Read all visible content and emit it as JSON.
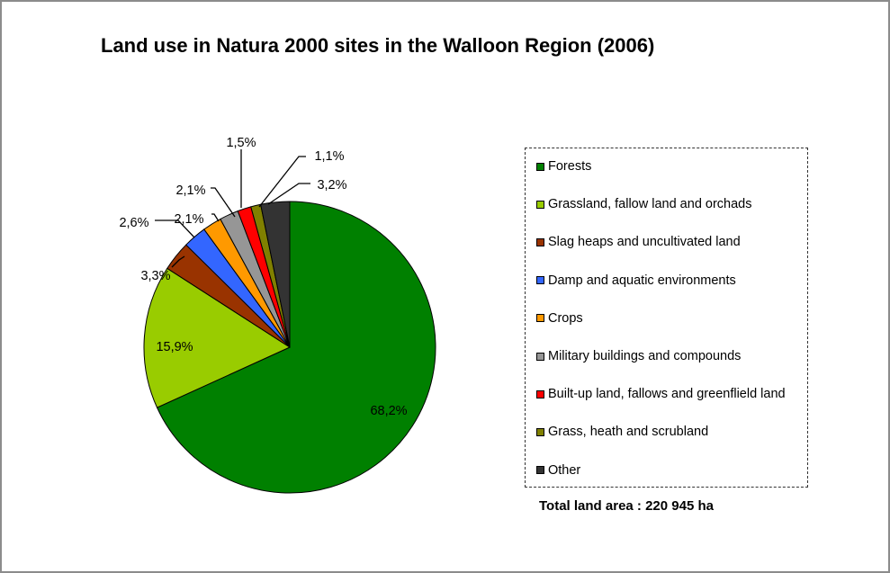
{
  "chart_data": {
    "type": "pie",
    "title": "Land use in Natura 2000 sites in the Walloon Region (2006)",
    "slices": [
      {
        "label": "Forests",
        "value": 68.2,
        "display": "68,2%",
        "color": "#008000"
      },
      {
        "label": "Grassland, fallow land and orchads",
        "value": 15.9,
        "display": "15,9%",
        "color": "#99cc00"
      },
      {
        "label": "Slag heaps and uncultivated land",
        "value": 3.3,
        "display": "3,3%",
        "color": "#993300"
      },
      {
        "label": "Damp and aquatic environments",
        "value": 2.6,
        "display": "2,6%",
        "color": "#3366ff"
      },
      {
        "label": "Crops",
        "value": 2.1,
        "display": "2,1%",
        "color": "#ff9900"
      },
      {
        "label": "Military buildings and compounds",
        "value": 2.1,
        "display": "2,1%",
        "color": "#969696"
      },
      {
        "label": "Built-up land, fallows and greenflield land",
        "value": 1.5,
        "display": "1,5%",
        "color": "#ff0000"
      },
      {
        "label": "Grass, heath and scrubland",
        "value": 1.1,
        "display": "1,1%",
        "color": "#808000"
      },
      {
        "label": "Other",
        "value": 3.2,
        "display": "3,2%",
        "color": "#333333"
      }
    ],
    "legend_position": "right",
    "note": "Total land area : 220 945 ha"
  }
}
